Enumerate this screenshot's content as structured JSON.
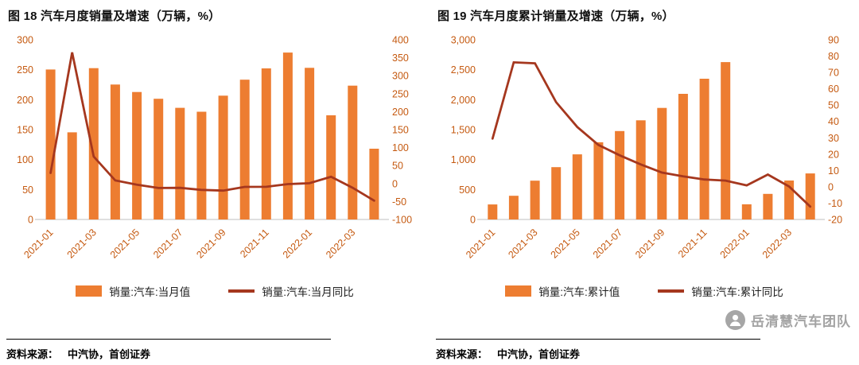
{
  "watermark": "岳清慧汽车团队",
  "colors": {
    "bar": "#ED7D31",
    "line": "#A5371E",
    "axis_label": "#C55A11",
    "axis_line": "#BFBFBF",
    "watermark": "#A3A3A3"
  },
  "chart_data": [
    {
      "type": "bar+line",
      "title": "图 18 汽车月度销量及增速（万辆，%）",
      "source_label": "资料来源：",
      "source_text": "中汽协，首创证券",
      "x": [
        "2021-01",
        "2021-02",
        "2021-03",
        "2021-04",
        "2021-05",
        "2021-06",
        "2021-07",
        "2021-08",
        "2021-09",
        "2021-10",
        "2021-11",
        "2021-12",
        "2022-01",
        "2022-02",
        "2022-03",
        "2022-04"
      ],
      "x_tick_every": 2,
      "x_tick_labels": [
        "2021-01",
        "2021-03",
        "2021-05",
        "2021-07",
        "2021-09",
        "2021-11",
        "2022-01",
        "2022-03"
      ],
      "series": [
        {
          "name": "销量:汽车:当月值",
          "type": "bar",
          "axis": "left",
          "values": [
            250.3,
            145.5,
            252.6,
            225.2,
            212.8,
            201.5,
            186.4,
            179.9,
            206.7,
            233.3,
            252.2,
            278.6,
            253.1,
            173.9,
            223.4,
            118.1
          ]
        },
        {
          "name": "销量:汽车:当月同比",
          "type": "line",
          "axis": "right",
          "values": [
            29.5,
            364.8,
            74.9,
            8.6,
            -3.1,
            -12.4,
            -11.9,
            -17.8,
            -19.6,
            -9.4,
            -9.1,
            -1.6,
            0.9,
            18.7,
            -11.7,
            -47.6
          ]
        }
      ],
      "left_axis": {
        "min": 0,
        "max": 300,
        "ticks": [
          0,
          50,
          100,
          150,
          200,
          250,
          300
        ],
        "labels": [
          "0",
          "50",
          "100",
          "150",
          "200",
          "250",
          "300"
        ]
      },
      "right_axis": {
        "min": -100,
        "max": 400,
        "ticks": [
          -100,
          -50,
          0,
          50,
          100,
          150,
          200,
          250,
          300,
          350,
          400
        ],
        "labels": [
          "-100",
          "-50",
          "0",
          "50",
          "100",
          "150",
          "200",
          "250",
          "300",
          "350",
          "400"
        ]
      },
      "grid": false,
      "legend_position": "bottom"
    },
    {
      "type": "bar+line",
      "title": "图 19 汽车月度累计销量及增速（万辆，%）",
      "source_label": "资料来源：",
      "source_text": "中汽协，首创证券",
      "x": [
        "2021-01",
        "2021-02",
        "2021-03",
        "2021-04",
        "2021-05",
        "2021-06",
        "2021-07",
        "2021-08",
        "2021-09",
        "2021-10",
        "2021-11",
        "2021-12",
        "2022-01",
        "2022-02",
        "2022-03",
        "2022-04"
      ],
      "x_tick_every": 2,
      "x_tick_labels": [
        "2021-01",
        "2021-03",
        "2021-05",
        "2021-07",
        "2021-09",
        "2021-11",
        "2022-01",
        "2022-03"
      ],
      "series": [
        {
          "name": "销量:汽车:累计值",
          "type": "bar",
          "axis": "left",
          "values": [
            250.3,
            395.8,
            648.4,
            873.6,
            1087.5,
            1289.1,
            1475.6,
            1655.5,
            1862.3,
            2097.0,
            2348.9,
            2627.5,
            253.1,
            426.8,
            650.9,
            769.1
          ]
        },
        {
          "name": "销量:汽车:累计同比",
          "type": "line",
          "axis": "right",
          "values": [
            29.5,
            76.2,
            75.6,
            51.8,
            36.6,
            25.6,
            19.3,
            13.7,
            8.7,
            6.4,
            4.5,
            3.8,
            0.9,
            7.5,
            0.2,
            -12.1
          ]
        }
      ],
      "left_axis": {
        "min": 0,
        "max": 3000,
        "ticks": [
          0,
          500,
          1000,
          1500,
          2000,
          2500,
          3000
        ],
        "labels": [
          "0",
          "500",
          "1,000",
          "1,500",
          "2,000",
          "2,500",
          "3,000"
        ]
      },
      "right_axis": {
        "min": -20,
        "max": 90,
        "ticks": [
          -20,
          -10,
          0,
          10,
          20,
          30,
          40,
          50,
          60,
          70,
          80,
          90
        ],
        "labels": [
          "-20",
          "-10",
          "0",
          "10",
          "20",
          "30",
          "40",
          "50",
          "60",
          "70",
          "80",
          "90"
        ]
      },
      "grid": false,
      "legend_position": "bottom"
    }
  ]
}
